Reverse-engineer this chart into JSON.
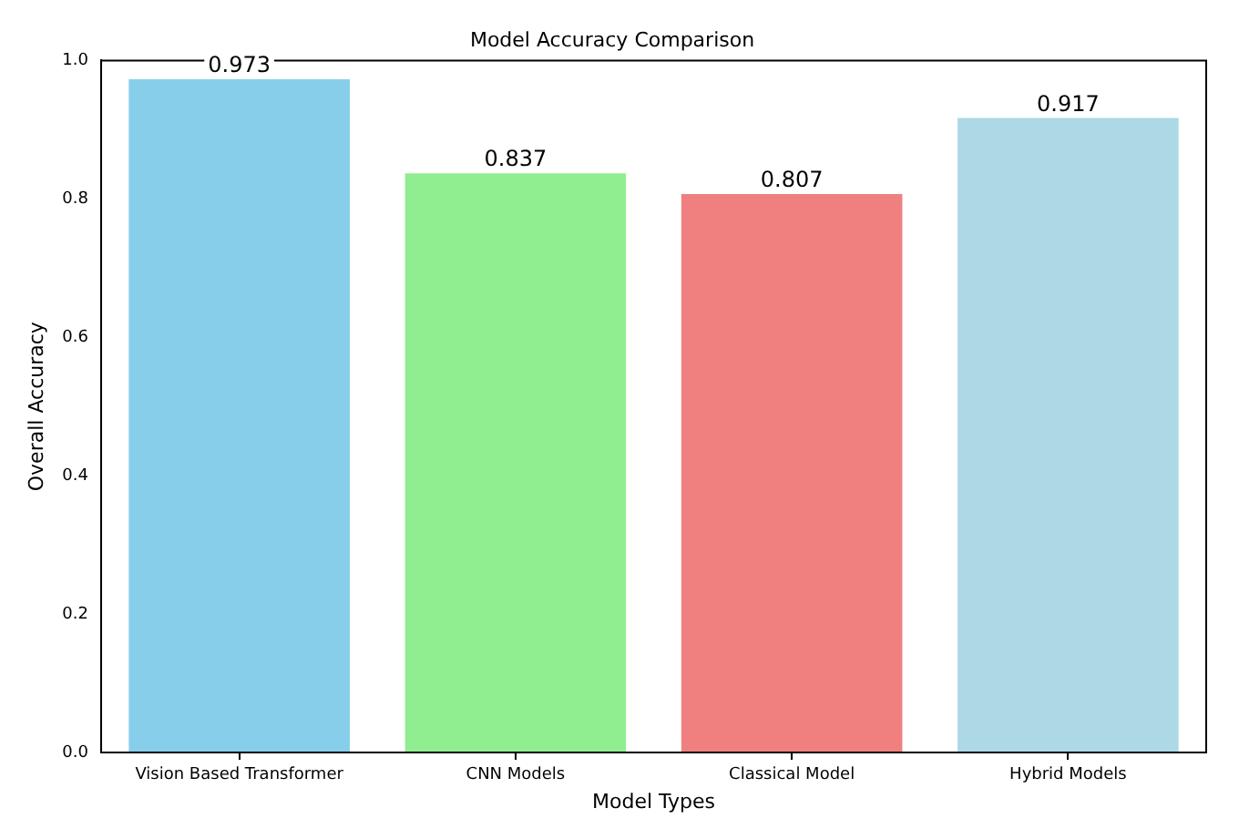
{
  "chart_data": {
    "type": "bar",
    "title": "Model Accuracy Comparison",
    "xlabel": "Model Types",
    "ylabel": "Overall Accuracy",
    "categories": [
      "Vision Based Transformer",
      "CNN Models",
      "Classical Model",
      "Hybrid Models"
    ],
    "values": [
      0.973,
      0.837,
      0.807,
      0.917
    ],
    "colors": [
      "#87ceeb",
      "#90ee90",
      "#f08080",
      "#add8e6"
    ],
    "ylim": [
      0,
      1
    ],
    "yticks": [
      {
        "value": 0,
        "label": "0.0"
      },
      {
        "value": 0.2,
        "label": "0.2"
      },
      {
        "value": 0.4,
        "label": "0.4"
      },
      {
        "value": 0.6,
        "label": "0.6"
      },
      {
        "value": 0.8,
        "label": "0.8"
      },
      {
        "value": 1,
        "label": "1.0"
      }
    ],
    "data_labels": true,
    "grid": false,
    "legend": false
  }
}
